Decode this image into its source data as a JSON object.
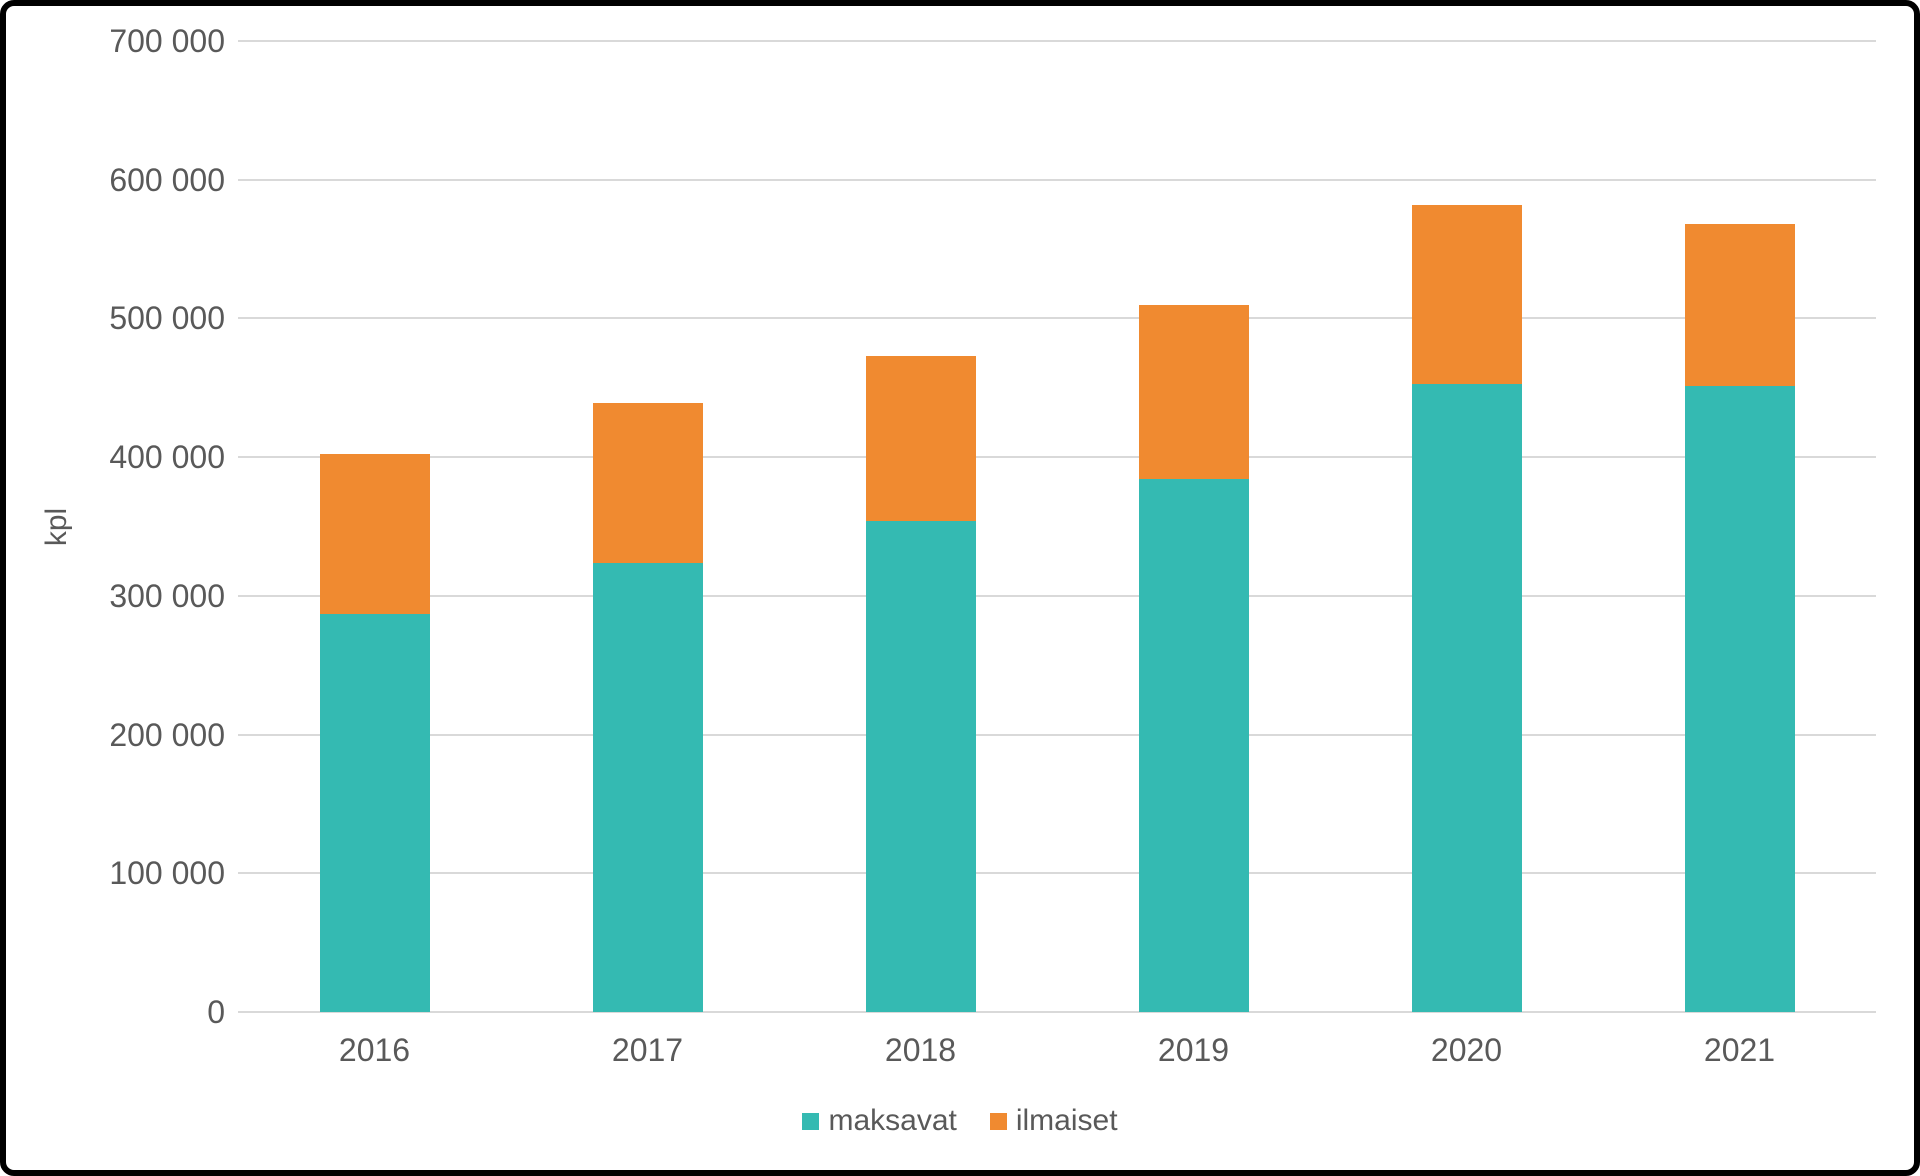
{
  "chart_data": {
    "type": "bar",
    "stacked": true,
    "title": "",
    "categories": [
      "2016",
      "2017",
      "2018",
      "2019",
      "2020",
      "2021"
    ],
    "series": [
      {
        "name": "maksavat",
        "color": "#34BAB2",
        "values": [
          287000,
          324000,
          354000,
          384000,
          453000,
          451000
        ]
      },
      {
        "name": "ilmaiset",
        "color": "#F08A30",
        "values": [
          115000,
          115000,
          119000,
          126000,
          129000,
          117000
        ]
      }
    ],
    "totals": [
      402000,
      439000,
      473000,
      510000,
      582000,
      568000
    ],
    "xlabel": "",
    "ylabel": "kpl",
    "ylim": [
      0,
      700000
    ],
    "ytick_step": 100000,
    "ytick_labels": [
      "0",
      "100 000",
      "200 000",
      "300 000",
      "400 000",
      "500 000",
      "600 000",
      "700 000"
    ],
    "grid": true,
    "legend_position": "bottom"
  },
  "colors": {
    "text": "#595959",
    "gridline": "#D9D9D9",
    "background": "#FFFFFF",
    "frame_border": "#000000"
  }
}
